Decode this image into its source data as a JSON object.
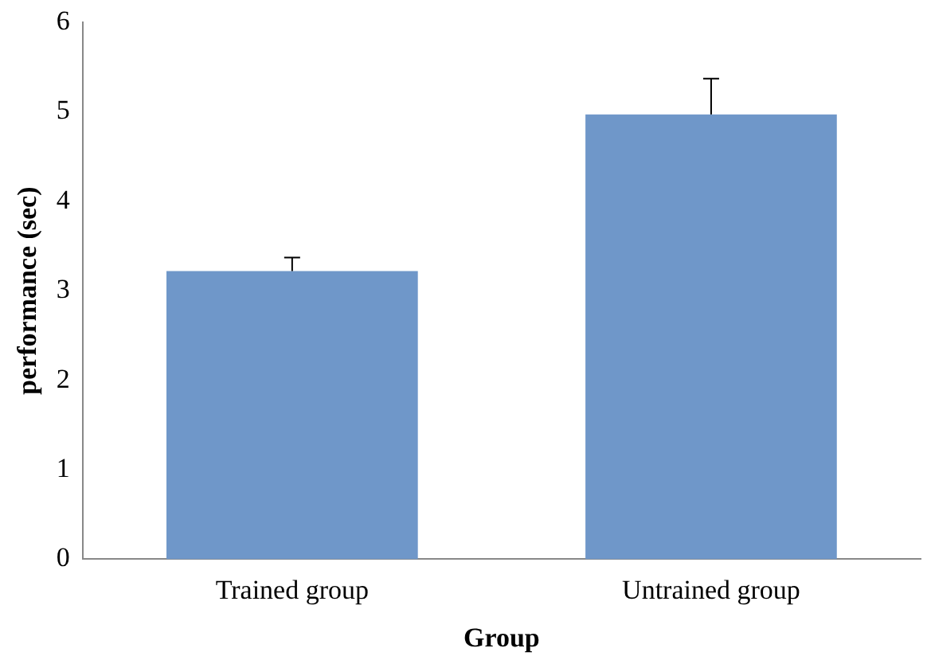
{
  "chart_data": {
    "type": "bar",
    "xlabel": "Group",
    "ylabel": "performance (sec)",
    "categories": [
      "Trained group",
      "Untrained group"
    ],
    "values": [
      3.22,
      4.97
    ],
    "errors": [
      [
        3.22,
        3.37
      ],
      [
        4.97,
        5.37
      ]
    ],
    "color": "#6f97c9",
    "ylim": [
      0,
      6
    ],
    "yticks": [
      0,
      1,
      2,
      3,
      4,
      5,
      6
    ],
    "grid": false,
    "legend": false
  }
}
